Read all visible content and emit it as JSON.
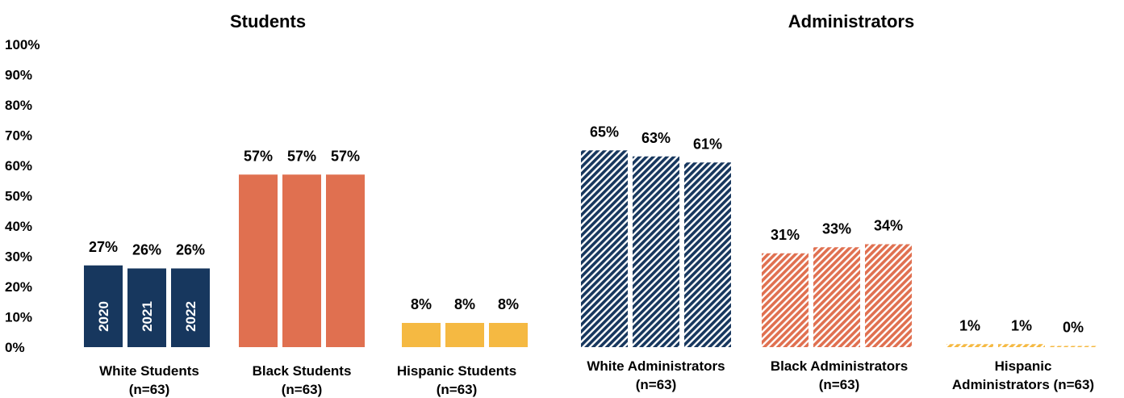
{
  "chart_data": {
    "type": "bar",
    "ylim": [
      0,
      100
    ],
    "y_ticks": [
      "0%",
      "10%",
      "20%",
      "30%",
      "40%",
      "50%",
      "60%",
      "70%",
      "80%",
      "90%",
      "100%"
    ],
    "year_labels": [
      "2020",
      "2021",
      "2022"
    ],
    "colors": {
      "white": "#17375e",
      "black": "#e07050",
      "hispanic": "#f5b942"
    },
    "panels": [
      {
        "title": "Students",
        "pattern": "solid",
        "groups": [
          {
            "label": [
              "White Students",
              "(n=63)"
            ],
            "color_key": "white",
            "values": [
              27,
              26,
              26
            ],
            "value_labels": [
              "27%",
              "26%",
              "26%"
            ]
          },
          {
            "label": [
              "Black Students",
              "(n=63)"
            ],
            "color_key": "black",
            "values": [
              57,
              57,
              57
            ],
            "value_labels": [
              "57%",
              "57%",
              "57%"
            ]
          },
          {
            "label": [
              "Hispanic Students",
              "(n=63)"
            ],
            "color_key": "hispanic",
            "values": [
              8,
              8,
              8
            ],
            "value_labels": [
              "8%",
              "8%",
              "8%"
            ]
          }
        ]
      },
      {
        "title": "Administrators",
        "pattern": "hatched",
        "groups": [
          {
            "label": [
              "White Administrators",
              "(n=63)"
            ],
            "color_key": "white",
            "values": [
              65,
              63,
              61
            ],
            "value_labels": [
              "65%",
              "63%",
              "61%"
            ]
          },
          {
            "label": [
              "Black Administrators",
              "(n=63)"
            ],
            "color_key": "black",
            "values": [
              31,
              33,
              34
            ],
            "value_labels": [
              "31%",
              "33%",
              "34%"
            ]
          },
          {
            "label": [
              "Hispanic",
              "Administrators (n=63)"
            ],
            "color_key": "hispanic",
            "values": [
              1,
              1,
              0
            ],
            "value_labels": [
              "1%",
              "1%",
              "0%"
            ]
          }
        ]
      }
    ]
  }
}
